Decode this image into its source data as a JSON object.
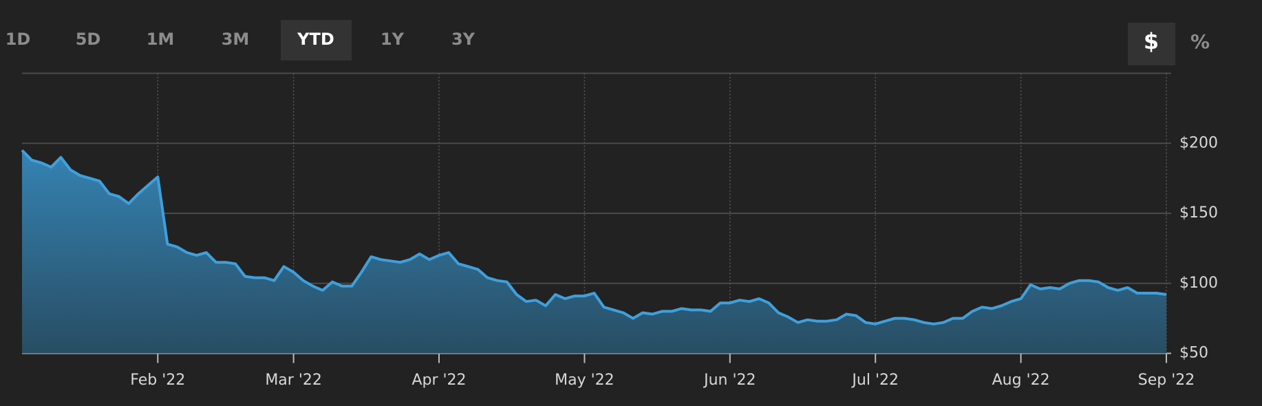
{
  "ui": {
    "ranges": [
      "1D",
      "5D",
      "1M",
      "3M",
      "YTD",
      "1Y",
      "3Y"
    ],
    "active_range": "YTD",
    "units": [
      "$",
      "%"
    ],
    "active_unit": "$"
  },
  "chart_data": {
    "type": "area",
    "color": "#3fa0dc",
    "grid": true,
    "categories": [
      null,
      null,
      null,
      null,
      null,
      null,
      null,
      null,
      null,
      null,
      null,
      null,
      null,
      null,
      "Feb '22",
      null,
      null,
      null,
      null,
      null,
      null,
      null,
      null,
      null,
      null,
      null,
      null,
      null,
      "Mar '22",
      null,
      null,
      null,
      null,
      null,
      null,
      null,
      null,
      null,
      null,
      null,
      null,
      null,
      null,
      "Apr '22",
      null,
      null,
      null,
      null,
      null,
      null,
      null,
      null,
      null,
      null,
      null,
      null,
      null,
      null,
      "May '22",
      null,
      null,
      null,
      null,
      null,
      null,
      null,
      null,
      null,
      null,
      null,
      null,
      null,
      null,
      "Jun '22",
      null,
      null,
      null,
      null,
      null,
      null,
      null,
      null,
      null,
      null,
      null,
      null,
      null,
      null,
      "Jul '22",
      null,
      null,
      null,
      null,
      null,
      null,
      null,
      null,
      null,
      null,
      null,
      null,
      null,
      null,
      "Aug '22",
      null,
      null,
      null,
      null,
      null,
      null,
      null,
      null,
      null,
      null,
      null,
      null,
      null,
      null,
      "Sep '22"
    ],
    "values": [
      195,
      188,
      186,
      183,
      190,
      181,
      177,
      175,
      173,
      164,
      162,
      157,
      164,
      170,
      176,
      128,
      126,
      122,
      120,
      122,
      115,
      115,
      114,
      105,
      104,
      104,
      102,
      112,
      108,
      102,
      98,
      95,
      101,
      98,
      98,
      108,
      119,
      117,
      116,
      115,
      117,
      121,
      117,
      120,
      122,
      114,
      112,
      110,
      104,
      102,
      101,
      92,
      87,
      88,
      84,
      92,
      89,
      91,
      91,
      93,
      83,
      81,
      79,
      75,
      79,
      78,
      80,
      80,
      82,
      81,
      81,
      80,
      86,
      86,
      88,
      87,
      89,
      86,
      79,
      76,
      72,
      74,
      73,
      73,
      74,
      78,
      77,
      72,
      71,
      73,
      75,
      75,
      74,
      72,
      71,
      72,
      75,
      75,
      80,
      83,
      82,
      84,
      87,
      89,
      99,
      96,
      97,
      96,
      100,
      102,
      102,
      101,
      97,
      95,
      97,
      93,
      93,
      93,
      92
    ],
    "ylim": [
      50,
      250
    ],
    "yticks": [
      {
        "value": 50,
        "label": "$50"
      },
      {
        "value": 100,
        "label": "$100"
      },
      {
        "value": 150,
        "label": "$150"
      },
      {
        "value": 200,
        "label": "$200"
      }
    ]
  }
}
